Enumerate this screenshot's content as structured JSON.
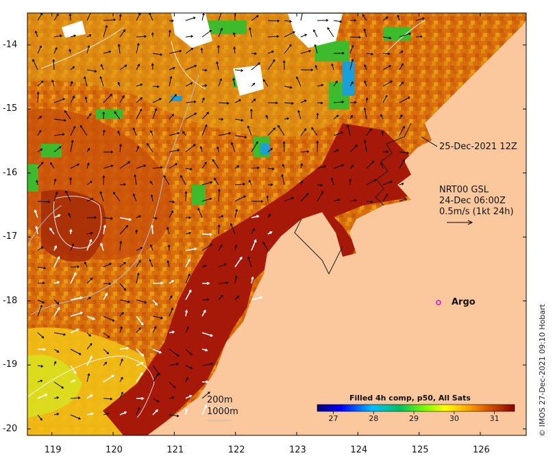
{
  "map": {
    "x_ticks": [
      "119",
      "120",
      "121",
      "122",
      "123",
      "124",
      "125",
      "126"
    ],
    "y_ticks": [
      "-14",
      "-15",
      "-16",
      "-17",
      "-18",
      "-19",
      "-20"
    ],
    "x_range": [
      118.6,
      126.75
    ],
    "y_range": [
      -20.1,
      -13.5
    ]
  },
  "annotations": {
    "image_time": "25-Dec-2021 12Z",
    "current_source": "NRT00 GSL",
    "current_time": "24-Dec 06:00Z",
    "arrow_scale": "0.5m/s (1kt 24h)",
    "argo_label": "Argo",
    "contour_200": "200m",
    "contour_1000": "1000m",
    "copyright": "© IMOS 27-Dec-2021 09:10 Hobart"
  },
  "colorbar": {
    "title": "Filled 4h comp, p50, All Sats",
    "ticks": [
      "27",
      "28",
      "29",
      "30",
      "31"
    ],
    "range": [
      26.6,
      31.5
    ]
  },
  "colors": {
    "land": "#fbc89e",
    "sst_cold": "#00007f",
    "sst_mid": "#7fff00",
    "sst_warm": "#8b0000",
    "cloud": "#ffffff",
    "argo": "#e000e0"
  }
}
